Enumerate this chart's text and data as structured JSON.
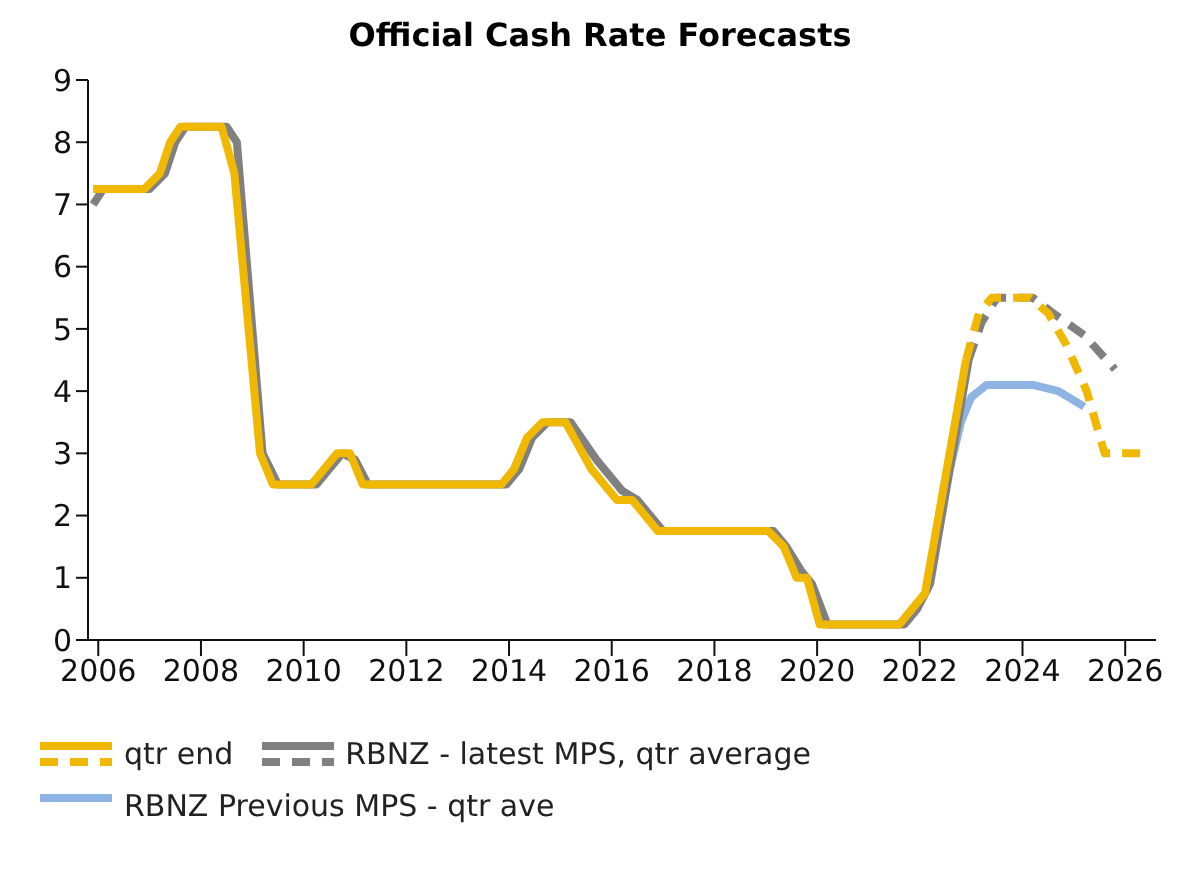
{
  "chart_data": {
    "type": "line",
    "title": "Official Cash Rate Forecasts",
    "xlim": [
      2005.8,
      2026.6
    ],
    "xticks": [
      2006,
      2008,
      2010,
      2012,
      2014,
      2016,
      2018,
      2020,
      2022,
      2024,
      2026
    ],
    "ylim": [
      0,
      9
    ],
    "yticks": [
      0,
      1,
      2,
      3,
      4,
      5,
      6,
      7,
      8,
      9
    ],
    "grid": false,
    "legend": "bottom",
    "marker": "none",
    "series": [
      {
        "name": "qtr end",
        "color": "#f0b800",
        "line_style": "solid",
        "x": [
          2005.9,
          2006.9,
          2007.2,
          2007.4,
          2007.6,
          2008.4,
          2008.65,
          2009.15,
          2009.4,
          2010.15,
          2010.65,
          2010.9,
          2011.15,
          2013.85,
          2014.1,
          2014.35,
          2014.65,
          2015.1,
          2015.6,
          2016.1,
          2016.4,
          2016.9,
          2019.05,
          2019.35,
          2019.6,
          2019.8,
          2020.05,
          2021.6,
          2021.85,
          2022.1,
          2022.9
        ],
        "values": [
          7.25,
          7.25,
          7.5,
          8.0,
          8.25,
          8.25,
          7.5,
          3.0,
          2.5,
          2.5,
          3.0,
          3.0,
          2.5,
          2.5,
          2.75,
          3.25,
          3.5,
          3.5,
          2.75,
          2.25,
          2.25,
          1.75,
          1.75,
          1.5,
          1.0,
          1.0,
          0.25,
          0.25,
          0.5,
          0.75,
          4.5
        ]
      },
      {
        "color": "#f0b800",
        "line_style": "dashed",
        "x": [
          2022.9,
          2023.15,
          2023.4,
          2024.15,
          2024.5,
          2024.85,
          2025.25,
          2025.6,
          2026.35
        ],
        "values": [
          4.5,
          5.25,
          5.5,
          5.5,
          5.25,
          4.75,
          4.0,
          3.0,
          3.0
        ]
      },
      {
        "name": "RBNZ - latest MPS, qtr average",
        "color": "#808080",
        "line_style": "solid",
        "x": [
          2005.9,
          2006.1,
          2007.0,
          2007.3,
          2007.5,
          2007.7,
          2008.5,
          2008.7,
          2008.9,
          2009.2,
          2009.5,
          2010.25,
          2010.75,
          2011.0,
          2011.25,
          2013.95,
          2014.2,
          2014.45,
          2014.75,
          2015.2,
          2015.7,
          2016.2,
          2016.5,
          2017.0,
          2019.15,
          2019.4,
          2019.7,
          2019.9,
          2020.2,
          2021.7,
          2021.95,
          2022.2,
          2022.95
        ],
        "values": [
          7.0,
          7.25,
          7.25,
          7.5,
          8.0,
          8.25,
          8.25,
          8.0,
          6.0,
          3.0,
          2.5,
          2.5,
          3.0,
          2.9,
          2.5,
          2.5,
          2.75,
          3.25,
          3.5,
          3.5,
          2.9,
          2.4,
          2.25,
          1.75,
          1.75,
          1.5,
          1.1,
          0.9,
          0.25,
          0.25,
          0.5,
          0.9,
          4.5
        ]
      },
      {
        "color": "#808080",
        "line_style": "dashed",
        "x": [
          2022.95,
          2023.2,
          2023.5,
          2024.2,
          2024.6,
          2025.2,
          2025.8
        ],
        "values": [
          4.5,
          5.1,
          5.5,
          5.5,
          5.25,
          4.9,
          4.35
        ]
      },
      {
        "name": "RBNZ Previous MPS - qtr ave",
        "color": "#8db4e2",
        "line_style": "solid",
        "x": [
          2022.6,
          2022.8,
          2023.0,
          2023.3,
          2024.2,
          2024.7,
          2025.2
        ],
        "values": [
          2.8,
          3.5,
          3.9,
          4.1,
          4.1,
          4.0,
          3.75
        ]
      }
    ]
  }
}
